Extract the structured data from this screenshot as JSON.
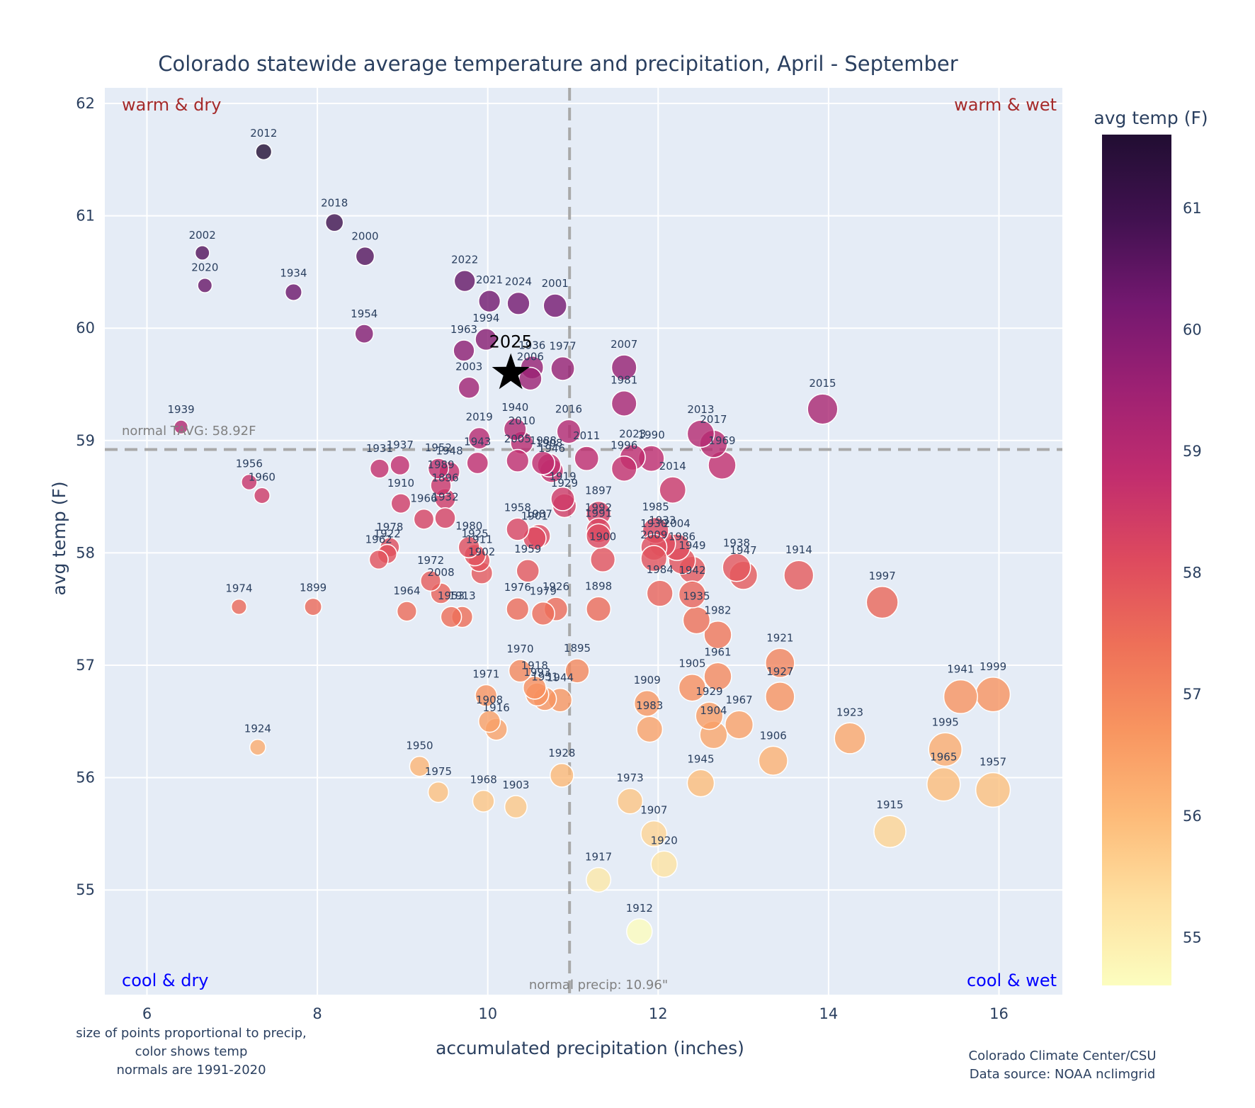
{
  "chart_data": {
    "type": "scatter",
    "title": "Colorado statewide average temperature and precipitation, April - September",
    "xlabel": "accumulated precipitation (inches)",
    "ylabel": "avg temp (F)",
    "xlim": [
      5.7,
      16.75
    ],
    "ylim": [
      54.1,
      62.1
    ],
    "xticks": [
      6,
      8,
      10,
      12,
      14,
      16
    ],
    "yticks": [
      55,
      56,
      57,
      58,
      59,
      60,
      61,
      62
    ],
    "grid": true,
    "colorbar": {
      "title": "avg temp (F)",
      "range": [
        54.6,
        61.6
      ],
      "ticks": [
        55,
        56,
        57,
        58,
        59,
        60,
        61
      ],
      "colorscale": "magma_r"
    },
    "normals": {
      "precip": 10.96,
      "precip_label": "normal precip: 10.96\"",
      "temp": 58.92,
      "temp_label": "normal TAVG: 58.92F"
    },
    "quadrants": {
      "top_left": "warm & dry",
      "top_right": "warm & wet",
      "bottom_left": "cool & dry",
      "bottom_right": "cool & wet"
    },
    "highlight": {
      "label": "2025",
      "x": 10.27,
      "y": 59.6,
      "marker": "star"
    },
    "points": [
      {
        "year": "2012",
        "x": 7.37,
        "y": 61.57
      },
      {
        "year": "2018",
        "x": 8.2,
        "y": 60.94
      },
      {
        "year": "2002",
        "x": 6.65,
        "y": 60.67
      },
      {
        "year": "2000",
        "x": 8.56,
        "y": 60.64
      },
      {
        "year": "2020",
        "x": 6.68,
        "y": 60.38
      },
      {
        "year": "1934",
        "x": 7.72,
        "y": 60.32
      },
      {
        "year": "2022",
        "x": 9.73,
        "y": 60.42
      },
      {
        "year": "2021",
        "x": 10.02,
        "y": 60.24
      },
      {
        "year": "2024",
        "x": 10.36,
        "y": 60.22
      },
      {
        "year": "2001",
        "x": 10.79,
        "y": 60.2
      },
      {
        "year": "1954",
        "x": 8.55,
        "y": 59.95
      },
      {
        "year": "1994",
        "x": 9.98,
        "y": 59.9
      },
      {
        "year": "1963",
        "x": 9.72,
        "y": 59.8
      },
      {
        "year": "1936",
        "x": 10.52,
        "y": 59.65
      },
      {
        "year": "1977",
        "x": 10.88,
        "y": 59.64
      },
      {
        "year": "2006",
        "x": 10.5,
        "y": 59.55
      },
      {
        "year": "2003",
        "x": 9.78,
        "y": 59.47
      },
      {
        "year": "2007",
        "x": 11.6,
        "y": 59.65
      },
      {
        "year": "1981",
        "x": 11.6,
        "y": 59.33
      },
      {
        "year": "2015",
        "x": 13.93,
        "y": 59.28
      },
      {
        "year": "1939",
        "x": 6.4,
        "y": 59.12
      },
      {
        "year": "1940",
        "x": 10.32,
        "y": 59.1
      },
      {
        "year": "2019",
        "x": 9.9,
        "y": 59.02
      },
      {
        "year": "2010",
        "x": 10.4,
        "y": 58.98
      },
      {
        "year": "2016",
        "x": 10.95,
        "y": 59.08
      },
      {
        "year": "2013",
        "x": 12.5,
        "y": 59.06
      },
      {
        "year": "2017",
        "x": 12.65,
        "y": 58.97
      },
      {
        "year": "2005",
        "x": 10.35,
        "y": 58.82
      },
      {
        "year": "2011",
        "x": 11.16,
        "y": 58.84
      },
      {
        "year": "2023",
        "x": 11.7,
        "y": 58.85
      },
      {
        "year": "1990",
        "x": 11.92,
        "y": 58.84
      },
      {
        "year": "1996",
        "x": 11.6,
        "y": 58.75
      },
      {
        "year": "1969",
        "x": 12.75,
        "y": 58.78
      },
      {
        "year": "1943",
        "x": 9.88,
        "y": 58.8
      },
      {
        "year": "1931",
        "x": 8.73,
        "y": 58.75
      },
      {
        "year": "1937",
        "x": 8.97,
        "y": 58.78
      },
      {
        "year": "1952",
        "x": 9.42,
        "y": 58.75
      },
      {
        "year": "1948",
        "x": 9.55,
        "y": 58.72
      },
      {
        "year": "1988",
        "x": 10.65,
        "y": 58.8
      },
      {
        "year": "1908",
        "x": 10.72,
        "y": 58.78
      },
      {
        "year": "1946",
        "x": 10.75,
        "y": 58.73
      },
      {
        "year": "2014",
        "x": 12.17,
        "y": 58.56
      },
      {
        "year": "1956",
        "x": 7.2,
        "y": 58.63
      },
      {
        "year": "1960",
        "x": 7.35,
        "y": 58.51
      },
      {
        "year": "1989",
        "x": 9.45,
        "y": 58.6
      },
      {
        "year": "1896",
        "x": 9.5,
        "y": 58.48
      },
      {
        "year": "1910",
        "x": 8.98,
        "y": 58.44
      },
      {
        "year": "1966",
        "x": 9.25,
        "y": 58.3
      },
      {
        "year": "1919",
        "x": 10.88,
        "y": 58.48
      },
      {
        "year": "1929",
        "x": 10.9,
        "y": 58.42
      },
      {
        "year": "1897",
        "x": 11.3,
        "y": 58.35
      },
      {
        "year": "1932",
        "x": 9.5,
        "y": 58.31
      },
      {
        "year": "1958",
        "x": 10.35,
        "y": 58.21
      },
      {
        "year": "1987",
        "x": 10.6,
        "y": 58.15
      },
      {
        "year": "1901",
        "x": 10.55,
        "y": 58.13
      },
      {
        "year": "1992",
        "x": 11.3,
        "y": 58.2
      },
      {
        "year": "1985",
        "x": 11.97,
        "y": 58.2
      },
      {
        "year": "1933",
        "x": 12.05,
        "y": 58.08
      },
      {
        "year": "1991",
        "x": 11.3,
        "y": 58.15
      },
      {
        "year": "1930",
        "x": 11.95,
        "y": 58.05
      },
      {
        "year": "1978",
        "x": 8.85,
        "y": 58.05
      },
      {
        "year": "1922",
        "x": 8.82,
        "y": 57.99
      },
      {
        "year": "1962",
        "x": 8.72,
        "y": 57.94
      },
      {
        "year": "1980",
        "x": 9.78,
        "y": 58.05
      },
      {
        "year": "1925",
        "x": 9.85,
        "y": 57.98
      },
      {
        "year": "1911",
        "x": 9.9,
        "y": 57.93
      },
      {
        "year": "1959",
        "x": 10.47,
        "y": 57.84
      },
      {
        "year": "2004",
        "x": 12.22,
        "y": 58.05
      },
      {
        "year": "1986",
        "x": 12.28,
        "y": 57.93
      },
      {
        "year": "1938",
        "x": 12.92,
        "y": 57.87
      },
      {
        "year": "1947",
        "x": 13.0,
        "y": 57.8
      },
      {
        "year": "1914",
        "x": 13.65,
        "y": 57.8
      },
      {
        "year": "1997",
        "x": 14.63,
        "y": 57.56
      },
      {
        "year": "1972",
        "x": 9.33,
        "y": 57.75
      },
      {
        "year": "2008",
        "x": 9.45,
        "y": 57.64
      },
      {
        "year": "1902",
        "x": 9.93,
        "y": 57.82
      },
      {
        "year": "2009",
        "x": 11.95,
        "y": 57.95
      },
      {
        "year": "1949",
        "x": 12.4,
        "y": 57.85
      },
      {
        "year": "1900",
        "x": 11.35,
        "y": 57.94
      },
      {
        "year": "1942",
        "x": 12.4,
        "y": 57.63
      },
      {
        "year": "1974",
        "x": 7.08,
        "y": 57.52
      },
      {
        "year": "1899",
        "x": 7.95,
        "y": 57.52
      },
      {
        "year": "1964",
        "x": 9.05,
        "y": 57.48
      },
      {
        "year": "1953",
        "x": 9.57,
        "y": 57.43
      },
      {
        "year": "1913",
        "x": 9.7,
        "y": 57.43
      },
      {
        "year": "1976",
        "x": 10.35,
        "y": 57.5
      },
      {
        "year": "1979",
        "x": 10.65,
        "y": 57.46
      },
      {
        "year": "1926",
        "x": 10.8,
        "y": 57.5
      },
      {
        "year": "1898",
        "x": 11.3,
        "y": 57.5
      },
      {
        "year": "1984",
        "x": 12.02,
        "y": 57.64
      },
      {
        "year": "1935",
        "x": 12.45,
        "y": 57.4
      },
      {
        "year": "1970",
        "x": 10.38,
        "y": 56.95
      },
      {
        "year": "1895",
        "x": 11.05,
        "y": 56.95
      },
      {
        "year": "1921",
        "x": 13.43,
        "y": 57.02
      },
      {
        "year": "1982",
        "x": 12.7,
        "y": 57.27
      },
      {
        "year": "1918",
        "x": 10.55,
        "y": 56.8
      },
      {
        "year": "1993",
        "x": 10.58,
        "y": 56.74
      },
      {
        "year": "1944",
        "x": 10.85,
        "y": 56.69
      },
      {
        "year": "1971",
        "x": 9.98,
        "y": 56.73
      },
      {
        "year": "1908",
        "x": 10.02,
        "y": 56.5
      },
      {
        "year": "1951",
        "x": 10.67,
        "y": 56.7
      },
      {
        "year": "1916",
        "x": 10.1,
        "y": 56.43
      },
      {
        "year": "1905",
        "x": 12.4,
        "y": 56.8
      },
      {
        "year": "1961",
        "x": 12.7,
        "y": 56.9
      },
      {
        "year": "1927",
        "x": 13.43,
        "y": 56.72
      },
      {
        "year": "1983",
        "x": 11.9,
        "y": 56.43
      },
      {
        "year": "1909",
        "x": 11.87,
        "y": 56.66
      },
      {
        "year": "1929b",
        "x": 12.6,
        "y": 56.55
      },
      {
        "year": "1904",
        "x": 12.65,
        "y": 56.38
      },
      {
        "year": "1967",
        "x": 12.95,
        "y": 56.47
      },
      {
        "year": "1941",
        "x": 15.55,
        "y": 56.72
      },
      {
        "year": "1999",
        "x": 15.93,
        "y": 56.74
      },
      {
        "year": "1923",
        "x": 14.25,
        "y": 56.35
      },
      {
        "year": "1995",
        "x": 15.37,
        "y": 56.25
      },
      {
        "year": "1965",
        "x": 15.35,
        "y": 55.94
      },
      {
        "year": "1957",
        "x": 15.93,
        "y": 55.89
      },
      {
        "year": "1906",
        "x": 13.35,
        "y": 56.15
      },
      {
        "year": "1924",
        "x": 7.3,
        "y": 56.27
      },
      {
        "year": "1950",
        "x": 9.2,
        "y": 56.1
      },
      {
        "year": "1975",
        "x": 9.42,
        "y": 55.87
      },
      {
        "year": "1968",
        "x": 9.95,
        "y": 55.79
      },
      {
        "year": "1903",
        "x": 10.33,
        "y": 55.74
      },
      {
        "year": "1928",
        "x": 10.87,
        "y": 56.02
      },
      {
        "year": "1945",
        "x": 12.5,
        "y": 55.95
      },
      {
        "year": "1973",
        "x": 11.67,
        "y": 55.79
      },
      {
        "year": "1907",
        "x": 11.95,
        "y": 55.5
      },
      {
        "year": "1920",
        "x": 12.07,
        "y": 55.23
      },
      {
        "year": "1917",
        "x": 11.3,
        "y": 55.09
      },
      {
        "year": "1915",
        "x": 14.72,
        "y": 55.52
      },
      {
        "year": "1912",
        "x": 11.78,
        "y": 54.63
      }
    ]
  },
  "footnotes": {
    "left": [
      "size of points proportional to precip,",
      "color shows temp",
      "normals are 1991-2020"
    ],
    "right": [
      "Colorado Climate Center/CSU",
      "Data source: NOAA nclimgrid"
    ]
  }
}
